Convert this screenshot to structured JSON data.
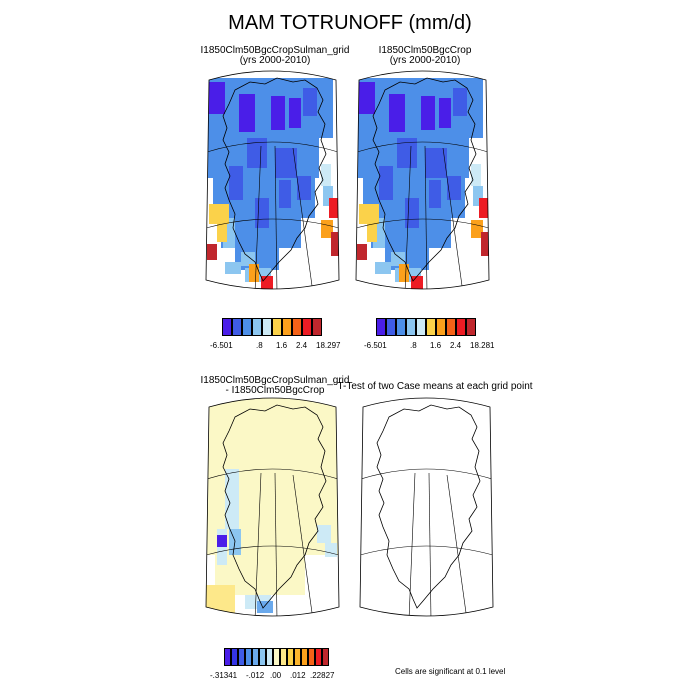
{
  "figure": {
    "title": "MAM TOTRUNOFF (mm/d)",
    "note": "Cells are significant at 0.1 level"
  },
  "panels": {
    "p1": {
      "title": "I1850Clm50BgcCropSulman_grid",
      "subtitle": "(yrs 2000-2010)"
    },
    "p2": {
      "title": "I1850Clm50BgcCrop",
      "subtitle": "(yrs 2000-2010)"
    },
    "p3": {
      "title": "I1850Clm50BgcCropSulman_grid",
      "subtitle": "- I1850Clm50BgcCrop"
    },
    "p4": {
      "title": "T-Test of two Case means at each grid point"
    }
  },
  "colorbars": {
    "cb1": {
      "colors": [
        "#4a1ee8",
        "#3f5ce6",
        "#4d8fe8",
        "#8cc6f0",
        "#cdeaf6",
        "#fbd24a",
        "#fba01c",
        "#f56218",
        "#ed1c24",
        "#c0272d"
      ],
      "labels": [
        "-6.501",
        ".8",
        "1.6",
        "2.4",
        "18.297"
      ]
    },
    "cb2": {
      "colors": [
        "#4a1ee8",
        "#3f5ce6",
        "#4d8fe8",
        "#8cc6f0",
        "#cdeaf6",
        "#fbd24a",
        "#fba01c",
        "#f56218",
        "#ed1c24",
        "#c0272d"
      ],
      "labels": [
        "-6.501",
        ".8",
        "1.6",
        "2.4",
        "18.281"
      ]
    },
    "cb3": {
      "colors": [
        "#4a1ee8",
        "#3535e6",
        "#3f5ce6",
        "#4d8fe8",
        "#6aa9ec",
        "#8cc6f0",
        "#cdeaf6",
        "#fbf8c6",
        "#fde88a",
        "#fbd24a",
        "#fbb52c",
        "#fba01c",
        "#f56218",
        "#ed1c24",
        "#c0272d"
      ],
      "labels": [
        "-.31341",
        "-.012",
        ".00",
        ".012",
        ".22827"
      ]
    }
  },
  "chart_data": [
    {
      "type": "heatmap",
      "title": "I1850Clm50BgcCropSulman_grid",
      "subtitle": "(yrs 2000-2010)",
      "region": "Greenland",
      "colorbar_labels": [
        "-6.501",
        ".8",
        "1.6",
        "2.4",
        "18.297"
      ]
    },
    {
      "type": "heatmap",
      "title": "I1850Clm50BgcCrop",
      "subtitle": "(yrs 2000-2010)",
      "region": "Greenland",
      "colorbar_labels": [
        "-6.501",
        ".8",
        "1.6",
        "2.4",
        "18.281"
      ]
    },
    {
      "type": "heatmap",
      "title": "I1850Clm50BgcCropSulman_grid",
      "subtitle": "- I1850Clm50BgcCrop",
      "region": "Greenland",
      "colorbar_labels": [
        "-.31341",
        "-.012",
        ".00",
        ".012",
        ".22827"
      ]
    },
    {
      "type": "heatmap",
      "title": "T-Test of two Case means at each grid point",
      "region": "Greenland",
      "significant_cells": 0
    }
  ]
}
